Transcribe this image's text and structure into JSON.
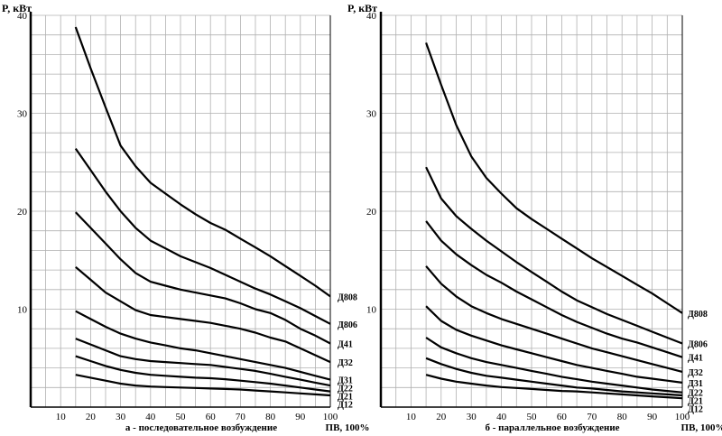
{
  "chart_data": [
    {
      "type": "line",
      "title": "",
      "caption": "а - последовательное возбуждение",
      "ylabel": "P, кВт",
      "xlabel": "ПВ, 100%",
      "xlim": [
        0,
        100
      ],
      "ylim": [
        0,
        40
      ],
      "xticks": [
        10,
        20,
        30,
        40,
        50,
        60,
        70,
        80,
        90,
        100
      ],
      "yticks": [
        10,
        20,
        30,
        40
      ],
      "grid": true,
      "series": [
        {
          "name": "Д808",
          "x": [
            15,
            20,
            25,
            30,
            35,
            40,
            45,
            50,
            55,
            60,
            65,
            70,
            75,
            80,
            85,
            90,
            95,
            100
          ],
          "y": [
            38.8,
            34.6,
            30.6,
            26.7,
            24.6,
            22.9,
            21.8,
            20.7,
            19.7,
            18.8,
            18.1,
            17.2,
            16.3,
            15.4,
            14.4,
            13.4,
            12.4,
            11.3
          ]
        },
        {
          "name": "Д806",
          "x": [
            15,
            20,
            25,
            30,
            35,
            40,
            45,
            50,
            55,
            60,
            65,
            70,
            75,
            80,
            85,
            90,
            95,
            100
          ],
          "y": [
            26.4,
            24.2,
            22.0,
            20.0,
            18.3,
            17.0,
            16.2,
            15.4,
            14.8,
            14.2,
            13.5,
            12.8,
            12.1,
            11.5,
            10.8,
            10.1,
            9.3,
            8.5
          ]
        },
        {
          "name": "Д41",
          "x": [
            15,
            20,
            25,
            30,
            35,
            40,
            45,
            50,
            55,
            60,
            65,
            70,
            75,
            80,
            85,
            90,
            95,
            100
          ],
          "y": [
            19.9,
            18.3,
            16.7,
            15.1,
            13.7,
            12.8,
            12.4,
            12.0,
            11.7,
            11.4,
            11.1,
            10.6,
            10.0,
            9.6,
            8.9,
            8.0,
            7.3,
            6.5
          ]
        },
        {
          "name": "Д32",
          "x": [
            15,
            20,
            25,
            30,
            35,
            40,
            45,
            50,
            55,
            60,
            65,
            70,
            75,
            80,
            85,
            90,
            95,
            100
          ],
          "y": [
            14.3,
            13.0,
            11.7,
            10.8,
            9.9,
            9.4,
            9.2,
            9.0,
            8.8,
            8.6,
            8.3,
            8.0,
            7.6,
            7.1,
            6.7,
            6.0,
            5.3,
            4.6
          ]
        },
        {
          "name": "Д31",
          "x": [
            15,
            20,
            25,
            30,
            35,
            40,
            45,
            50,
            55,
            60,
            65,
            70,
            75,
            80,
            85,
            90,
            95,
            100
          ],
          "y": [
            9.8,
            9.0,
            8.2,
            7.5,
            7.0,
            6.6,
            6.3,
            6.0,
            5.8,
            5.5,
            5.2,
            4.9,
            4.6,
            4.3,
            4.0,
            3.6,
            3.2,
            2.8
          ]
        },
        {
          "name": "Д22",
          "x": [
            15,
            20,
            25,
            30,
            35,
            40,
            45,
            50,
            55,
            60,
            65,
            70,
            75,
            80,
            85,
            90,
            95,
            100
          ],
          "y": [
            7.0,
            6.4,
            5.8,
            5.2,
            4.9,
            4.7,
            4.6,
            4.5,
            4.4,
            4.3,
            4.1,
            3.9,
            3.7,
            3.4,
            3.1,
            2.8,
            2.5,
            2.2
          ]
        },
        {
          "name": "Д21",
          "x": [
            15,
            20,
            25,
            30,
            35,
            40,
            45,
            50,
            55,
            60,
            65,
            70,
            75,
            80,
            85,
            90,
            95,
            100
          ],
          "y": [
            5.2,
            4.7,
            4.2,
            3.8,
            3.5,
            3.3,
            3.2,
            3.1,
            3.0,
            2.95,
            2.85,
            2.7,
            2.55,
            2.4,
            2.2,
            2.0,
            1.8,
            1.6
          ]
        },
        {
          "name": "Д12",
          "x": [
            15,
            20,
            25,
            30,
            35,
            40,
            45,
            50,
            55,
            60,
            65,
            70,
            75,
            80,
            85,
            90,
            95,
            100
          ],
          "y": [
            3.3,
            3.0,
            2.7,
            2.4,
            2.2,
            2.1,
            2.05,
            2.0,
            1.95,
            1.9,
            1.85,
            1.8,
            1.7,
            1.6,
            1.5,
            1.4,
            1.3,
            1.2
          ]
        }
      ]
    },
    {
      "type": "line",
      "title": "",
      "caption": "б - параллельное возбуждение",
      "ylabel": "P, кВт",
      "xlabel": "ПВ, 100%",
      "xlim": [
        0,
        100
      ],
      "ylim": [
        0,
        40
      ],
      "xticks": [
        10,
        20,
        30,
        40,
        50,
        60,
        70,
        80,
        90,
        100
      ],
      "yticks": [
        10,
        20,
        30,
        40
      ],
      "grid": true,
      "series": [
        {
          "name": "Д808",
          "x": [
            15,
            20,
            25,
            30,
            35,
            40,
            45,
            50,
            55,
            60,
            65,
            70,
            75,
            80,
            85,
            90,
            95,
            100
          ],
          "y": [
            37.2,
            32.9,
            28.8,
            25.6,
            23.4,
            21.8,
            20.3,
            19.2,
            18.2,
            17.2,
            16.2,
            15.2,
            14.3,
            13.4,
            12.5,
            11.6,
            10.6,
            9.6
          ]
        },
        {
          "name": "Д806",
          "x": [
            15,
            20,
            25,
            30,
            35,
            40,
            45,
            50,
            55,
            60,
            65,
            70,
            75,
            80,
            85,
            90,
            95,
            100
          ],
          "y": [
            24.5,
            21.3,
            19.5,
            18.2,
            17.0,
            15.9,
            14.8,
            13.8,
            12.8,
            11.8,
            10.9,
            10.2,
            9.5,
            8.9,
            8.3,
            7.7,
            7.1,
            6.5
          ]
        },
        {
          "name": "Д41",
          "x": [
            15,
            20,
            25,
            30,
            35,
            40,
            45,
            50,
            55,
            60,
            65,
            70,
            75,
            80,
            85,
            90,
            95,
            100
          ],
          "y": [
            19.0,
            17.0,
            15.6,
            14.5,
            13.5,
            12.7,
            11.8,
            11.0,
            10.2,
            9.4,
            8.7,
            8.1,
            7.5,
            7.0,
            6.6,
            6.1,
            5.6,
            5.1
          ]
        },
        {
          "name": "Д32",
          "x": [
            15,
            20,
            25,
            30,
            35,
            40,
            45,
            50,
            55,
            60,
            65,
            70,
            75,
            80,
            85,
            90,
            95,
            100
          ],
          "y": [
            14.4,
            12.6,
            11.3,
            10.3,
            9.6,
            9.0,
            8.5,
            8.0,
            7.5,
            7.0,
            6.5,
            6.0,
            5.6,
            5.2,
            4.8,
            4.4,
            4.0,
            3.6
          ]
        },
        {
          "name": "Д31",
          "x": [
            15,
            20,
            25,
            30,
            35,
            40,
            45,
            50,
            55,
            60,
            65,
            70,
            75,
            80,
            85,
            90,
            95,
            100
          ],
          "y": [
            10.3,
            8.8,
            7.9,
            7.3,
            6.8,
            6.3,
            5.9,
            5.5,
            5.1,
            4.7,
            4.3,
            4.0,
            3.7,
            3.4,
            3.1,
            2.9,
            2.7,
            2.5
          ]
        },
        {
          "name": "Д22",
          "x": [
            15,
            20,
            25,
            30,
            35,
            40,
            45,
            50,
            55,
            60,
            65,
            70,
            75,
            80,
            85,
            90,
            95,
            100
          ],
          "y": [
            7.1,
            6.1,
            5.5,
            5.0,
            4.6,
            4.3,
            4.0,
            3.7,
            3.4,
            3.1,
            2.85,
            2.6,
            2.4,
            2.2,
            2.0,
            1.8,
            1.65,
            1.5
          ]
        },
        {
          "name": "Д21",
          "x": [
            15,
            20,
            25,
            30,
            35,
            40,
            45,
            50,
            55,
            60,
            65,
            70,
            75,
            80,
            85,
            90,
            95,
            100
          ],
          "y": [
            5.0,
            4.4,
            3.9,
            3.5,
            3.2,
            3.0,
            2.8,
            2.6,
            2.4,
            2.2,
            2.0,
            1.9,
            1.75,
            1.6,
            1.5,
            1.4,
            1.3,
            1.2
          ]
        },
        {
          "name": "Д12",
          "x": [
            15,
            20,
            25,
            30,
            35,
            40,
            45,
            50,
            55,
            60,
            65,
            70,
            75,
            80,
            85,
            90,
            95,
            100
          ],
          "y": [
            3.3,
            2.9,
            2.6,
            2.4,
            2.2,
            2.05,
            1.95,
            1.85,
            1.75,
            1.65,
            1.6,
            1.5,
            1.4,
            1.3,
            1.2,
            1.1,
            1.0,
            0.9
          ]
        }
      ]
    }
  ]
}
